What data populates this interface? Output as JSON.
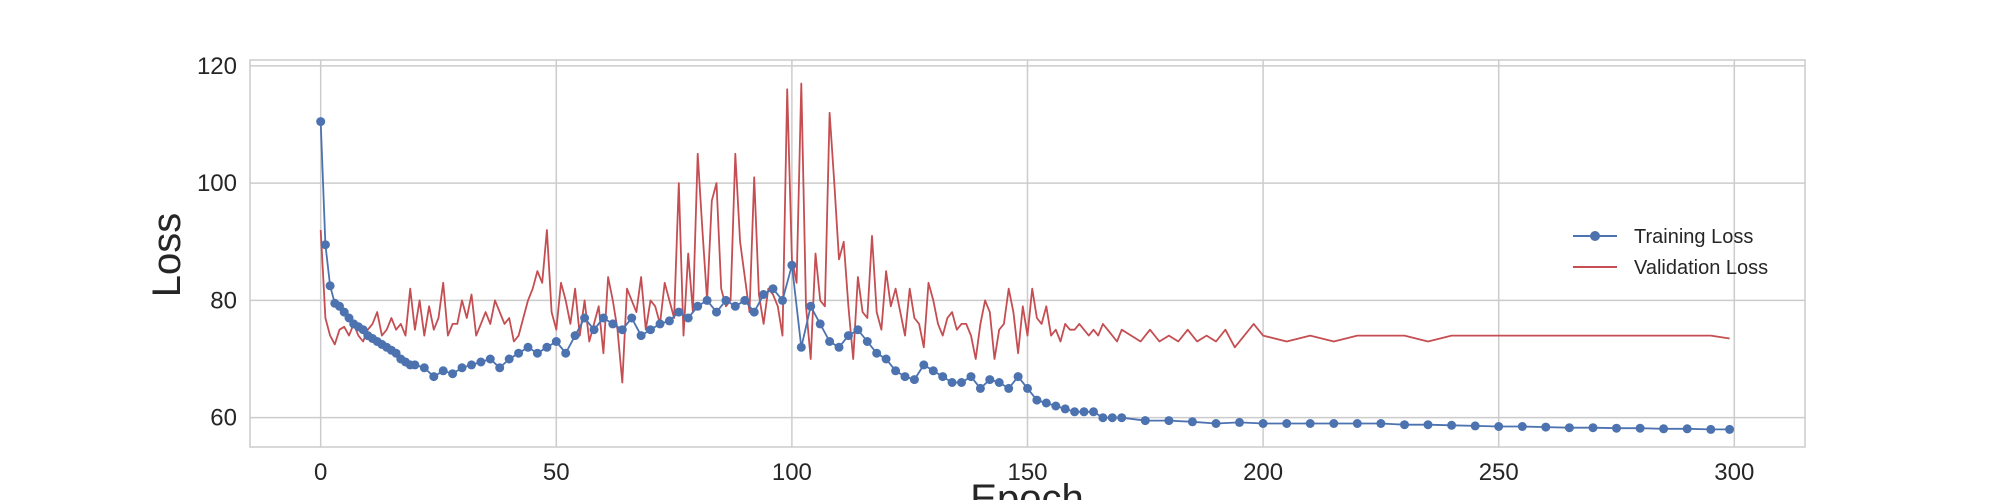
{
  "chart_data": {
    "type": "line",
    "title": "",
    "xlabel": "Epoch",
    "ylabel": "Loss",
    "xlim": [
      -15,
      315
    ],
    "ylim": [
      55,
      121
    ],
    "xticks": [
      0,
      50,
      100,
      150,
      200,
      250,
      300
    ],
    "yticks": [
      60,
      80,
      100,
      120
    ],
    "grid": true,
    "legend_position": "center-right",
    "series": [
      {
        "name": "Training Loss",
        "color": "#4c72b0",
        "marker": "circle",
        "x": [
          0,
          1,
          2,
          3,
          4,
          5,
          6,
          7,
          8,
          9,
          10,
          11,
          12,
          13,
          14,
          15,
          16,
          17,
          18,
          19,
          20,
          22,
          24,
          26,
          28,
          30,
          32,
          34,
          36,
          38,
          40,
          42,
          44,
          46,
          48,
          50,
          52,
          54,
          56,
          58,
          60,
          62,
          64,
          66,
          68,
          70,
          72,
          74,
          76,
          78,
          80,
          82,
          84,
          86,
          88,
          90,
          92,
          94,
          96,
          98,
          100,
          102,
          104,
          106,
          108,
          110,
          112,
          114,
          116,
          118,
          120,
          122,
          124,
          126,
          128,
          130,
          132,
          134,
          136,
          138,
          140,
          142,
          144,
          146,
          148,
          150,
          152,
          154,
          156,
          158,
          160,
          162,
          164,
          166,
          168,
          170,
          175,
          180,
          185,
          190,
          195,
          200,
          205,
          210,
          215,
          220,
          225,
          230,
          235,
          240,
          245,
          250,
          255,
          260,
          265,
          270,
          275,
          280,
          285,
          290,
          295,
          299
        ],
        "y": [
          110.5,
          89.5,
          82.5,
          79.5,
          79,
          78,
          77,
          76,
          75.5,
          75,
          74,
          73.5,
          73,
          72.5,
          72,
          71.5,
          71,
          70,
          69.5,
          69,
          69,
          68.5,
          67,
          68,
          67.5,
          68.5,
          69,
          69.5,
          70,
          68.5,
          70,
          71,
          72,
          71,
          72,
          73,
          71,
          74,
          77,
          75,
          77,
          76,
          75,
          77,
          74,
          75,
          76,
          76.5,
          78,
          77,
          79,
          80,
          78,
          80,
          79,
          80,
          78,
          81,
          82,
          80,
          86,
          72,
          79,
          76,
          73,
          72,
          74,
          75,
          73,
          71,
          70,
          68,
          67,
          66.5,
          69,
          68,
          67,
          66,
          66,
          67,
          65,
          66.5,
          66,
          65,
          67,
          65,
          63,
          62.5,
          62,
          61.5,
          61,
          61,
          61,
          60,
          60,
          60,
          59.5,
          59.5,
          59.3,
          59,
          59.2,
          59,
          59,
          59,
          59,
          59,
          59,
          58.8,
          58.8,
          58.7,
          58.6,
          58.5,
          58.5,
          58.4,
          58.3,
          58.3,
          58.2,
          58.2,
          58.1,
          58.1,
          58,
          58
        ]
      },
      {
        "name": "Validation Loss",
        "color": "#c44e52",
        "marker": "none",
        "x": [
          0,
          1,
          2,
          3,
          4,
          5,
          6,
          7,
          8,
          9,
          10,
          11,
          12,
          13,
          14,
          15,
          16,
          17,
          18,
          19,
          20,
          21,
          22,
          23,
          24,
          25,
          26,
          27,
          28,
          29,
          30,
          31,
          32,
          33,
          34,
          35,
          36,
          37,
          38,
          39,
          40,
          41,
          42,
          43,
          44,
          45,
          46,
          47,
          48,
          49,
          50,
          51,
          52,
          53,
          54,
          55,
          56,
          57,
          58,
          59,
          60,
          61,
          62,
          63,
          64,
          65,
          66,
          67,
          68,
          69,
          70,
          71,
          72,
          73,
          74,
          75,
          76,
          77,
          78,
          79,
          80,
          81,
          82,
          83,
          84,
          85,
          86,
          87,
          88,
          89,
          90,
          91,
          92,
          93,
          94,
          95,
          96,
          97,
          98,
          99,
          100,
          101,
          102,
          103,
          104,
          105,
          106,
          107,
          108,
          109,
          110,
          111,
          112,
          113,
          114,
          115,
          116,
          117,
          118,
          119,
          120,
          121,
          122,
          123,
          124,
          125,
          126,
          127,
          128,
          129,
          130,
          131,
          132,
          133,
          134,
          135,
          136,
          137,
          138,
          139,
          140,
          141,
          142,
          143,
          144,
          145,
          146,
          147,
          148,
          149,
          150,
          151,
          152,
          153,
          154,
          155,
          156,
          157,
          158,
          159,
          160,
          161,
          162,
          163,
          164,
          165,
          166,
          167,
          168,
          169,
          170,
          172,
          174,
          176,
          178,
          180,
          182,
          184,
          186,
          188,
          190,
          192,
          194,
          196,
          198,
          200,
          205,
          210,
          215,
          220,
          225,
          230,
          235,
          240,
          245,
          250,
          255,
          260,
          265,
          270,
          275,
          280,
          285,
          290,
          295,
          299
        ],
        "y": [
          92,
          77,
          74,
          72.5,
          75,
          75.5,
          74,
          76,
          74,
          73,
          75,
          76,
          78,
          74,
          75,
          77,
          75,
          76,
          74,
          82,
          75,
          80,
          74,
          79,
          75,
          77,
          83,
          74,
          76,
          76,
          80,
          77,
          81,
          74,
          76,
          78,
          76,
          80,
          78,
          76,
          77,
          73,
          74,
          77,
          80,
          82,
          85,
          83,
          92,
          78,
          75,
          83,
          80,
          76,
          82,
          74,
          80,
          73,
          76,
          79,
          71,
          84,
          80,
          75,
          66,
          82,
          80,
          78,
          84,
          75,
          80,
          79,
          76,
          83,
          80,
          77,
          100,
          74,
          88,
          78,
          105,
          92,
          80,
          97,
          100,
          82,
          79,
          80,
          105,
          90,
          84,
          78,
          101,
          81,
          76,
          82,
          81,
          79,
          74,
          116,
          87,
          83,
          117,
          79,
          70,
          88,
          80,
          79,
          112,
          100,
          87,
          90,
          79,
          70,
          84,
          78,
          77,
          91,
          78,
          75,
          85,
          79,
          82,
          78,
          74,
          82,
          77,
          76,
          72,
          83,
          80,
          76,
          74,
          77,
          78,
          75,
          76,
          76,
          74,
          70,
          76,
          80,
          78,
          70,
          75,
          76,
          82,
          78,
          71,
          79,
          74,
          82,
          77,
          76,
          79,
          74,
          75,
          73,
          76,
          75,
          75,
          76,
          75,
          74,
          75,
          74,
          76,
          75,
          74,
          73,
          75,
          74,
          73,
          75,
          73,
          74,
          73,
          75,
          73,
          74,
          73,
          75,
          72,
          74,
          76,
          74,
          73,
          74,
          73,
          74,
          74,
          74,
          73,
          74,
          74,
          74,
          74,
          74,
          74,
          74,
          74,
          74,
          74,
          74,
          74,
          73.5
        ]
      }
    ]
  }
}
